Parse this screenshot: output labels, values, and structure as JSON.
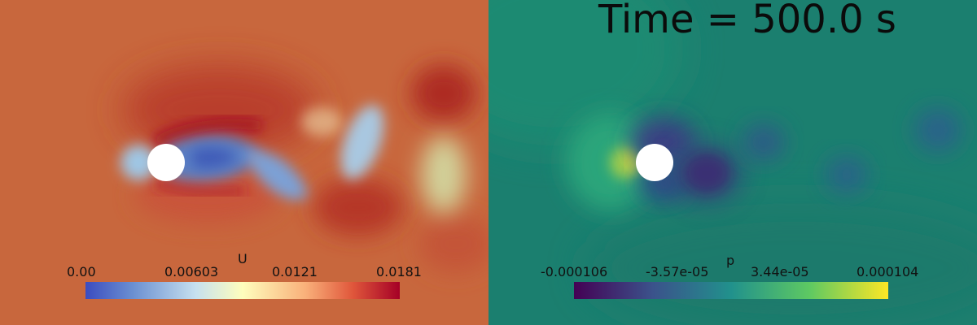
{
  "time_label": "Time = 500.0 s",
  "panels": {
    "velocity": {
      "colorbar_title": "U",
      "ticks": [
        "0.00",
        "0.00603",
        "0.0121",
        "0.0181"
      ],
      "colors": {
        "background": "#c8663c",
        "low": "#3b4cc0",
        "mid": "#fefebd",
        "high": "#a50026"
      }
    },
    "pressure": {
      "colorbar_title": "p",
      "ticks": [
        "-0.000106",
        "-3.57e-05",
        "3.44e-05",
        "0.000104"
      ],
      "colors": {
        "background": "#1a7d6e",
        "low": "#440154",
        "mid": "#21918c",
        "high": "#fde725"
      }
    }
  }
}
